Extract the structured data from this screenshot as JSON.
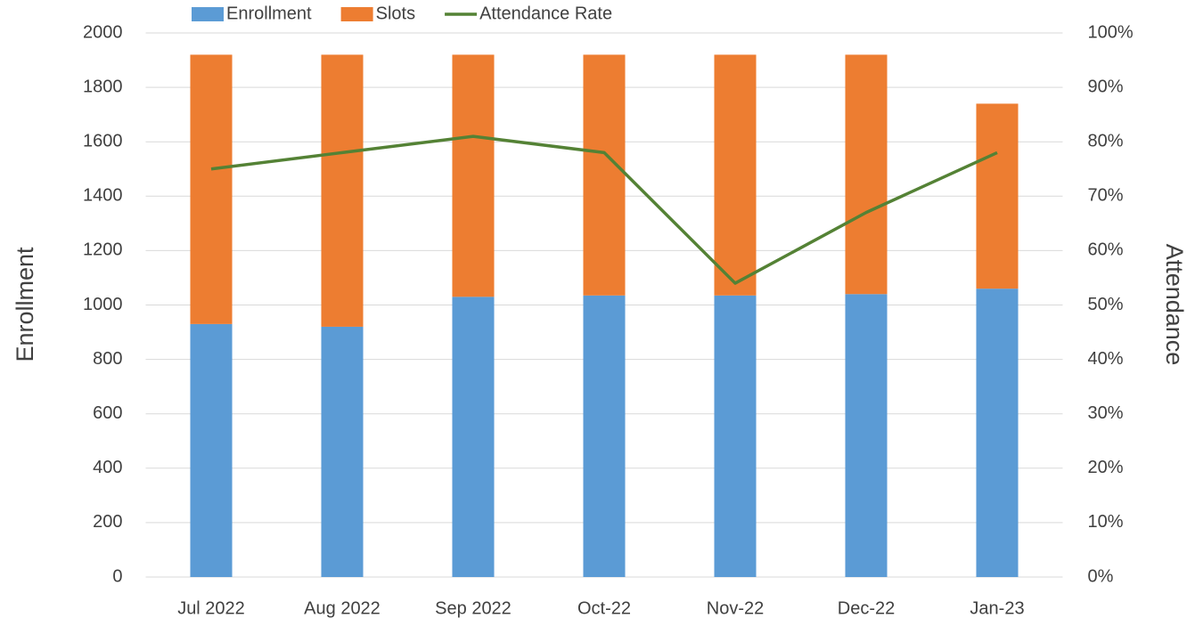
{
  "chart_data": {
    "type": "bar",
    "stacked": true,
    "categories": [
      "Jul 2022",
      "Aug 2022",
      "Sep 2022",
      "Oct-22",
      "Nov-22",
      "Dec-22",
      "Jan-23"
    ],
    "series": [
      {
        "name": "Enrollment",
        "color": "#5b9bd5",
        "values": [
          930,
          920,
          1030,
          1035,
          1035,
          1040,
          1060
        ]
      },
      {
        "name": "Slots",
        "color": "#ed7d31",
        "values": [
          990,
          1000,
          890,
          885,
          885,
          880,
          680
        ]
      },
      {
        "name": "Attendance Rate",
        "type": "line",
        "axis": "y2",
        "color": "#548235",
        "values": [
          75,
          78,
          81,
          78,
          54,
          67,
          78
        ]
      }
    ],
    "y_label": "Enrollment",
    "y2_label": "Attendance",
    "ylim": [
      0,
      2000
    ],
    "yticks": [
      0,
      200,
      400,
      600,
      800,
      1000,
      1200,
      1400,
      1600,
      1800,
      2000
    ],
    "y2lim": [
      0,
      100
    ],
    "y2ticks": [
      {
        "value": 0,
        "label": "0%"
      },
      {
        "value": 10,
        "label": "10%"
      },
      {
        "value": 20,
        "label": "20%"
      },
      {
        "value": 30,
        "label": "30%"
      },
      {
        "value": 40,
        "label": "40%"
      },
      {
        "value": 50,
        "label": "50%"
      },
      {
        "value": 60,
        "label": "60%"
      },
      {
        "value": 70,
        "label": "70%"
      },
      {
        "value": 80,
        "label": "80%"
      },
      {
        "value": 90,
        "label": "90%"
      },
      {
        "value": 100,
        "label": "100%"
      }
    ],
    "grid": true,
    "legend": "top"
  }
}
